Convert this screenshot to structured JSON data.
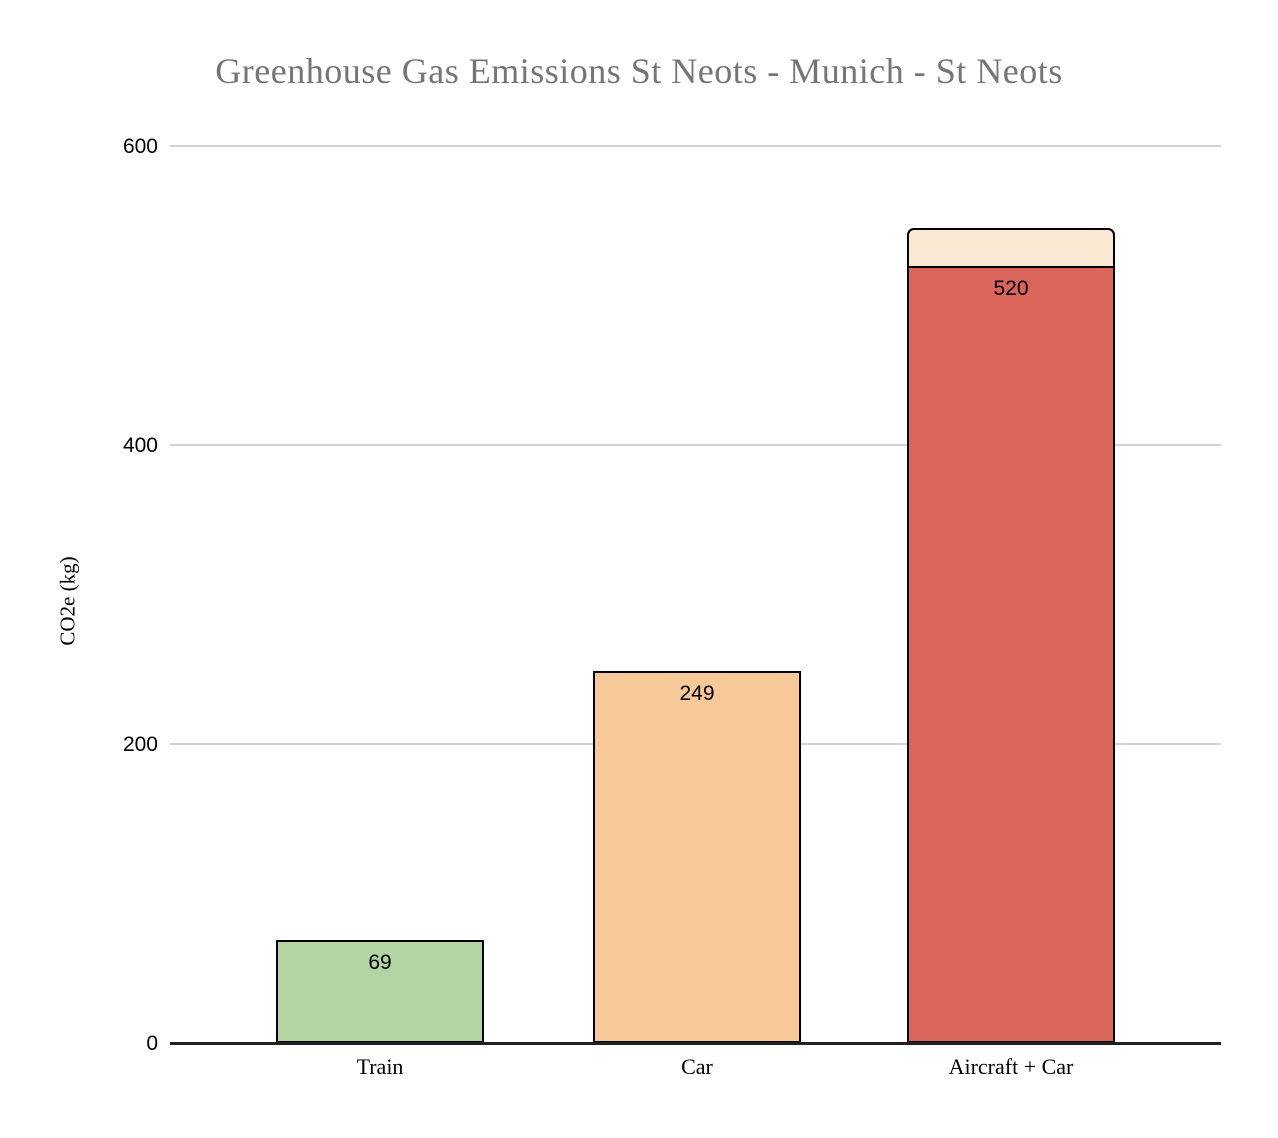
{
  "chart_data": {
    "type": "bar",
    "stacked": true,
    "title": "Greenhouse Gas Emissions St Neots - Munich - St Neots",
    "title_color": "#757575",
    "xlabel": "",
    "ylabel": "CO2e (kg)",
    "ylim": [
      0,
      600
    ],
    "yticks": [
      0,
      200,
      400,
      600
    ],
    "grid": true,
    "gridline_color": "#d2d2d2",
    "axis_line_color": "#212121",
    "legend": "none",
    "categories": [
      "Train",
      "Car",
      "Aircraft + Car"
    ],
    "bars": [
      {
        "category": "Train",
        "total": 69,
        "segments": [
          {
            "value": 69,
            "label": "69",
            "color": "#b3d5a4"
          }
        ]
      },
      {
        "category": "Car",
        "total": 249,
        "segments": [
          {
            "value": 249,
            "label": "249",
            "color": "#f8c998"
          }
        ]
      },
      {
        "category": "Aircraft + Car",
        "total": 545,
        "segments": [
          {
            "value": 520,
            "label": "520",
            "color": "#d9655b"
          },
          {
            "value": 25,
            "label": "",
            "color": "#fbe8d3"
          }
        ]
      }
    ],
    "bar_border_color": "#000000",
    "value_label_color": "#000000"
  }
}
